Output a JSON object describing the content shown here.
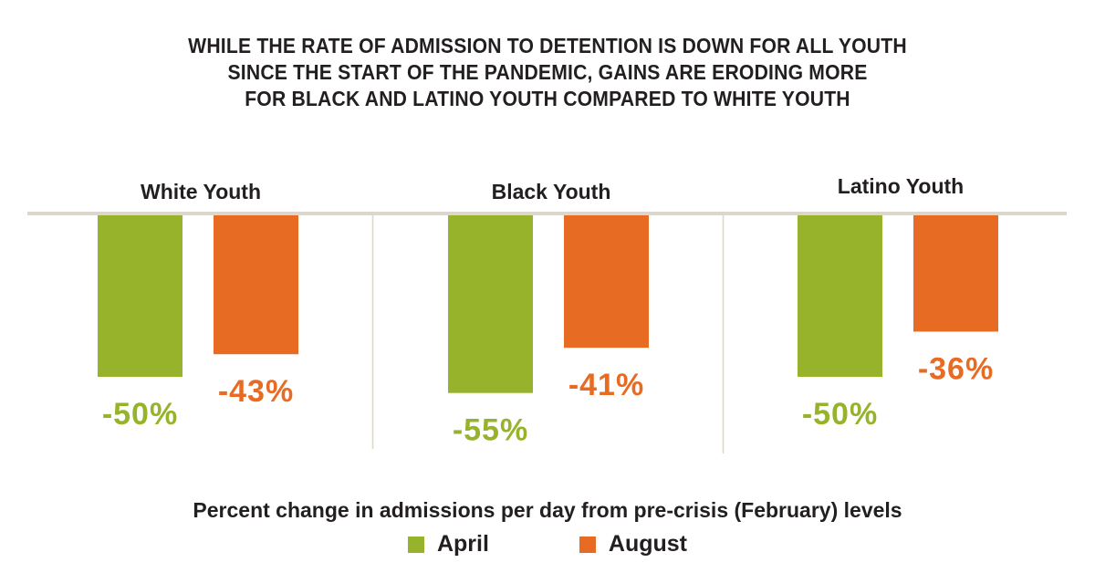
{
  "title_lines": [
    "WHILE THE RATE OF ADMISSION TO DETENTION IS DOWN FOR ALL YOUTH",
    "SINCE THE START OF THE PANDEMIC, GAINS ARE ERODING MORE",
    "FOR BLACK AND LATINO YOUTH COMPARED TO WHITE YOUTH"
  ],
  "colors": {
    "april": "#97b22b",
    "august": "#e86b24",
    "baseline": "#ddd6cc",
    "divider": "#ddd6cc",
    "text": "#231f20"
  },
  "chart_data": {
    "type": "bar",
    "title": "WHILE THE RATE OF ADMISSION TO DETENTION IS DOWN FOR ALL YOUTH SINCE THE START OF THE PANDEMIC, GAINS ARE ERODING MORE FOR BLACK AND LATINO YOUTH COMPARED TO WHITE YOUTH",
    "categories": [
      "White Youth",
      "Black Youth",
      "Latino Youth"
    ],
    "series": [
      {
        "name": "April",
        "values": [
          -50,
          -55,
          -50
        ],
        "labels": [
          "-50%",
          "-55%",
          "-50%"
        ]
      },
      {
        "name": "August",
        "values": [
          -43,
          -41,
          -36
        ],
        "labels": [
          "-43%",
          "-41%",
          "-36%"
        ]
      }
    ],
    "xlabel": "Percent change in admissions per day from pre-crisis (February) levels",
    "ylabel": "",
    "ylim": [
      -60,
      0
    ],
    "grid": false,
    "legend": "bottom-center",
    "units": "percent"
  },
  "footer": {
    "caption": "Percent change in admissions per day from pre-crisis (February) levels"
  },
  "legend": {
    "items": [
      {
        "label": "April"
      },
      {
        "label": "August"
      }
    ]
  }
}
